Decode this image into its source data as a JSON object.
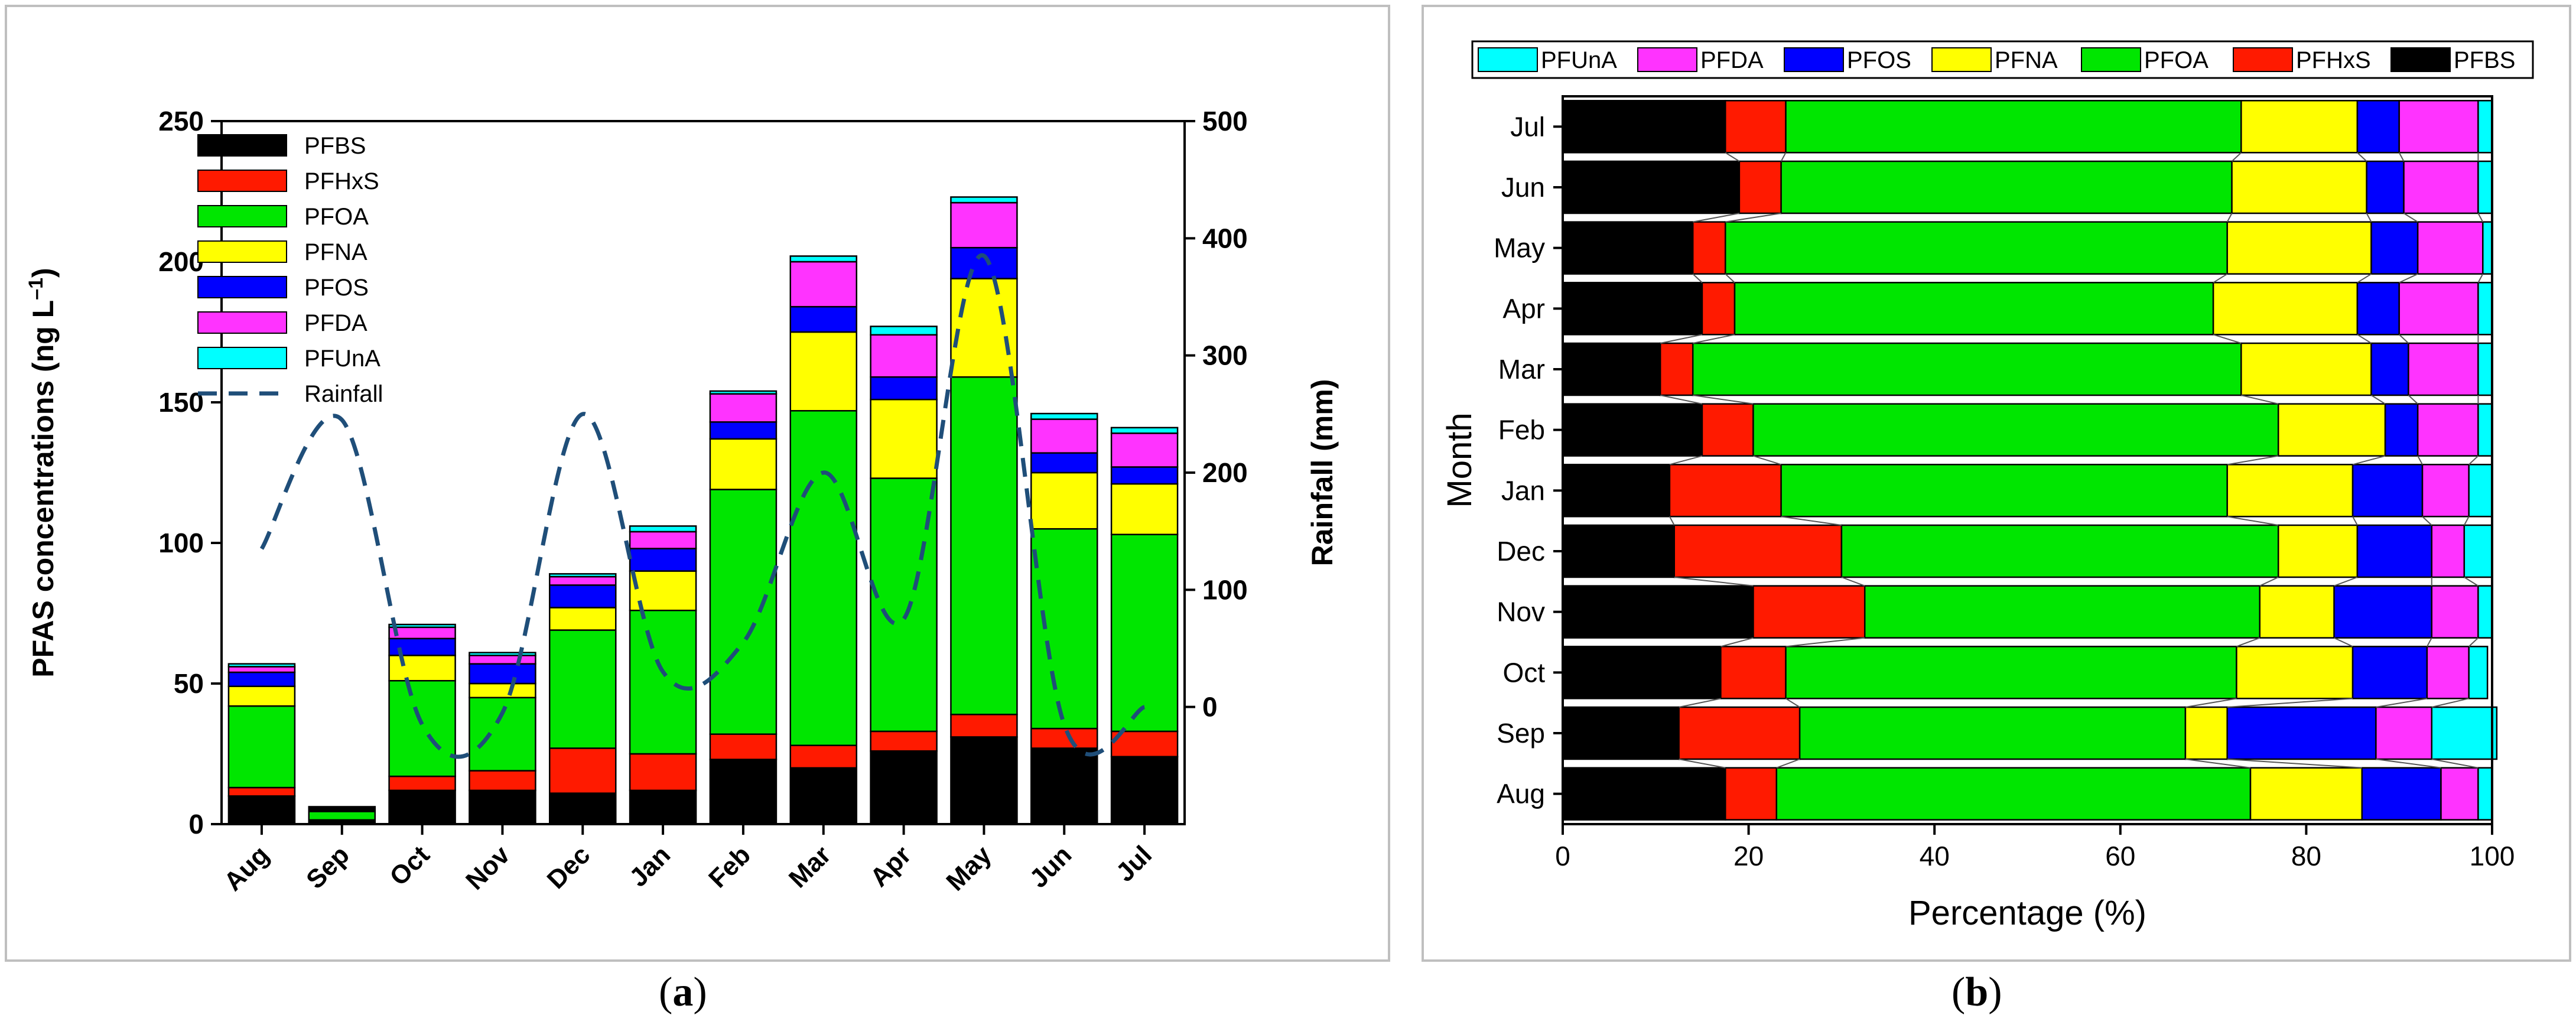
{
  "chart_data": [
    {
      "panel": "a",
      "type": "bar",
      "stacked": true,
      "categories": [
        "Aug",
        "Sep",
        "Oct",
        "Nov",
        "Dec",
        "Jan",
        "Feb",
        "Mar",
        "Apr",
        "May",
        "Jun",
        "Jul"
      ],
      "ylabel": "PFAS concentrations (ng L⁻¹)",
      "ylabel_main": "PFAS concentrations (ng L",
      "ylabel_sup": "–1",
      "ylabel_close": ")",
      "y2label": "Rainfall (mm)",
      "ylim": [
        0,
        250
      ],
      "yticks": [
        0,
        50,
        100,
        150,
        200,
        250
      ],
      "y2lim": [
        -100,
        500
      ],
      "y2ticks": [
        0,
        100,
        200,
        300,
        400,
        500
      ],
      "legend_position": "top-left",
      "series": [
        {
          "name": "PFBS",
          "color": "#000000",
          "values": [
            10,
            1,
            12,
            12,
            11,
            12,
            23,
            20,
            26,
            31,
            27,
            24
          ]
        },
        {
          "name": "PFHxS",
          "color": "#ff1a00",
          "values": [
            3,
            0.5,
            5,
            7,
            16,
            13,
            9,
            8,
            7,
            8,
            7,
            9
          ]
        },
        {
          "name": "PFOA",
          "color": "#00e600",
          "values": [
            29,
            3,
            34,
            26,
            42,
            51,
            87,
            119,
            90,
            120,
            71,
            70
          ]
        },
        {
          "name": "PFNA",
          "color": "#ffff00",
          "values": [
            7,
            0.5,
            9,
            5,
            8,
            14,
            18,
            28,
            28,
            35,
            20,
            18
          ]
        },
        {
          "name": "PFOS",
          "color": "#0000ff",
          "values": [
            5,
            0.5,
            6,
            7,
            8,
            8,
            6,
            9,
            8,
            11,
            7,
            6
          ]
        },
        {
          "name": "PFDA",
          "color": "#ff33ff",
          "values": [
            2,
            0.5,
            4,
            3,
            3,
            6,
            10,
            16,
            15,
            16,
            12,
            12
          ]
        },
        {
          "name": "PFUnA",
          "color": "#00ffff",
          "values": [
            1,
            0.2,
            1,
            1,
            1,
            2,
            1,
            2,
            3,
            2,
            2,
            2
          ]
        }
      ],
      "rainfall": {
        "name": "Rainfall",
        "color": "#1f4e79",
        "style": "dashed",
        "values": [
          135,
          245,
          -15,
          -5,
          250,
          30,
          55,
          200,
          75,
          385,
          -15,
          0
        ]
      }
    },
    {
      "panel": "b",
      "type": "bar",
      "orientation": "horizontal",
      "stacked_percent": true,
      "categories": [
        "Aug",
        "Sep",
        "Oct",
        "Nov",
        "Dec",
        "Jan",
        "Feb",
        "Mar",
        "Apr",
        "May",
        "Jun",
        "Jul"
      ],
      "xlabel": "Percentage (%)",
      "ylabel": "Month",
      "xlim": [
        0,
        100
      ],
      "xticks": [
        0,
        20,
        40,
        60,
        80,
        100
      ],
      "legend_position": "top",
      "legend_order": [
        "PFUnA",
        "PFDA",
        "PFOS",
        "PFNA",
        "PFOA",
        "PFHxS",
        "PFBS"
      ],
      "series": [
        {
          "name": "PFBS",
          "color": "#000000",
          "values": [
            17.5,
            12.5,
            17,
            20.5,
            12,
            11.5,
            15,
            10.5,
            15,
            14,
            19,
            17.5
          ]
        },
        {
          "name": "PFHxS",
          "color": "#ff1a00",
          "values": [
            5.5,
            13,
            7,
            12,
            18,
            12,
            5.5,
            3.5,
            3.5,
            3.5,
            4.5,
            6.5
          ]
        },
        {
          "name": "PFOA",
          "color": "#00e600",
          "values": [
            51,
            41.5,
            48.5,
            42.5,
            47,
            48,
            56.5,
            59,
            51.5,
            54,
            48.5,
            49
          ]
        },
        {
          "name": "PFNA",
          "color": "#ffff00",
          "values": [
            12,
            4.5,
            12.5,
            8,
            8.5,
            13.5,
            11.5,
            14,
            15.5,
            15.5,
            14.5,
            12.5
          ]
        },
        {
          "name": "PFOS",
          "color": "#0000ff",
          "values": [
            8.5,
            16,
            8,
            10.5,
            8,
            7.5,
            3.5,
            4,
            4.5,
            5,
            4,
            4.5
          ]
        },
        {
          "name": "PFDA",
          "color": "#ff33ff",
          "values": [
            4,
            6,
            4.5,
            5,
            3.5,
            5,
            6.5,
            7.5,
            8.5,
            7,
            8,
            8.5
          ]
        },
        {
          "name": "PFUnA",
          "color": "#00ffff",
          "values": [
            1.5,
            7,
            2,
            1.5,
            3,
            2.5,
            1.5,
            1.5,
            1.5,
            1,
            1.5,
            1.5
          ]
        }
      ]
    }
  ],
  "captions": {
    "a_open": "(",
    "a_letter": "a",
    "a_close": ")",
    "b_open": "(",
    "b_letter": "b",
    "b_close": ")"
  }
}
